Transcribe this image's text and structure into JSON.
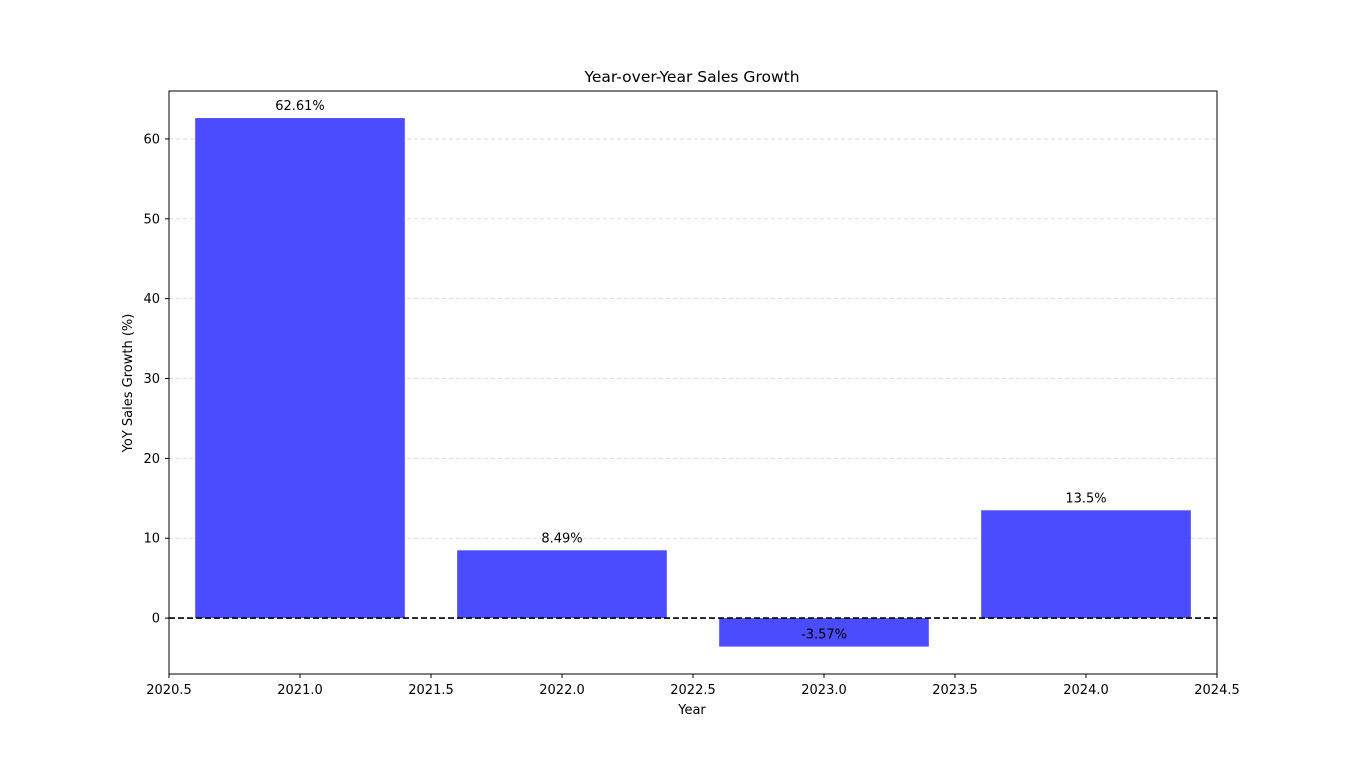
{
  "chart_data": {
    "type": "bar",
    "title": "Year-over-Year Sales Growth",
    "xlabel": "Year",
    "ylabel": "YoY Sales Growth (%)",
    "x": [
      2021,
      2022,
      2023,
      2024
    ],
    "values": [
      62.61,
      8.49,
      -3.57,
      13.5
    ],
    "value_labels": [
      "62.61%",
      "8.49%",
      "-3.57%",
      "13.5%"
    ],
    "bar_width": 0.8,
    "xlim": [
      2020.5,
      2024.5
    ],
    "ylim": [
      -7,
      66
    ],
    "xticks": [
      2020.5,
      2021.0,
      2021.5,
      2022.0,
      2022.5,
      2023.0,
      2023.5,
      2024.0,
      2024.5
    ],
    "xtick_labels": [
      "2020.5",
      "2021.0",
      "2021.5",
      "2022.0",
      "2022.5",
      "2023.0",
      "2023.5",
      "2024.0",
      "2024.5"
    ],
    "yticks": [
      0,
      10,
      20,
      30,
      40,
      50,
      60
    ],
    "ytick_labels": [
      "0",
      "10",
      "20",
      "30",
      "40",
      "50",
      "60"
    ],
    "grid": "horizontal dashed",
    "zero_line": "black dashed",
    "colors": {
      "bar": "#4b4bff",
      "grid": "#d3d3d3",
      "zero_line": "#000000"
    }
  }
}
